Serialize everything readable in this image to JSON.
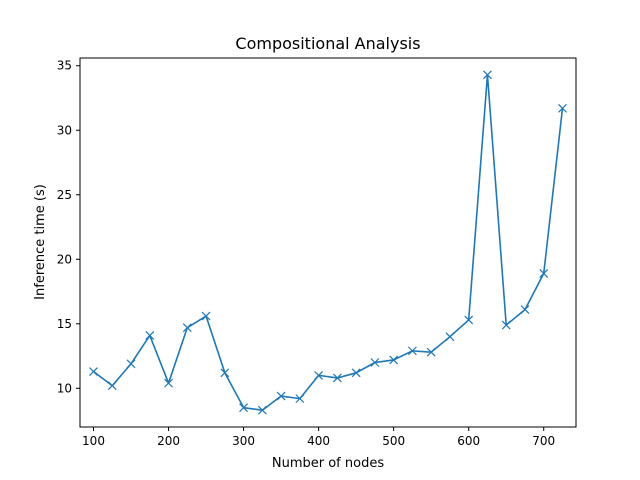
{
  "chart_data": {
    "type": "line",
    "title": "Compositional Analysis",
    "xlabel": "Number of nodes",
    "ylabel": "Inference time (s)",
    "xlim": [
      82,
      743
    ],
    "ylim": [
      7.0,
      35.6
    ],
    "xticks": [
      100,
      200,
      300,
      400,
      500,
      600,
      700
    ],
    "yticks": [
      10,
      15,
      20,
      25,
      30,
      35
    ],
    "grid": false,
    "marker": "x",
    "color": "#1f77b4",
    "series": [
      {
        "x": [
          100,
          125,
          150,
          175,
          200,
          225,
          250,
          275,
          300,
          325,
          350,
          375,
          400,
          425,
          450,
          475,
          500,
          525,
          550,
          575,
          600,
          625,
          650,
          675,
          700,
          725
        ],
        "values": [
          11.3,
          10.2,
          11.9,
          14.1,
          10.4,
          14.7,
          15.6,
          11.2,
          8.5,
          8.3,
          9.4,
          9.2,
          11.0,
          10.8,
          11.2,
          12.0,
          12.2,
          12.9,
          12.8,
          14.0,
          15.3,
          34.3,
          14.9,
          16.1,
          18.9,
          31.7
        ]
      }
    ]
  }
}
